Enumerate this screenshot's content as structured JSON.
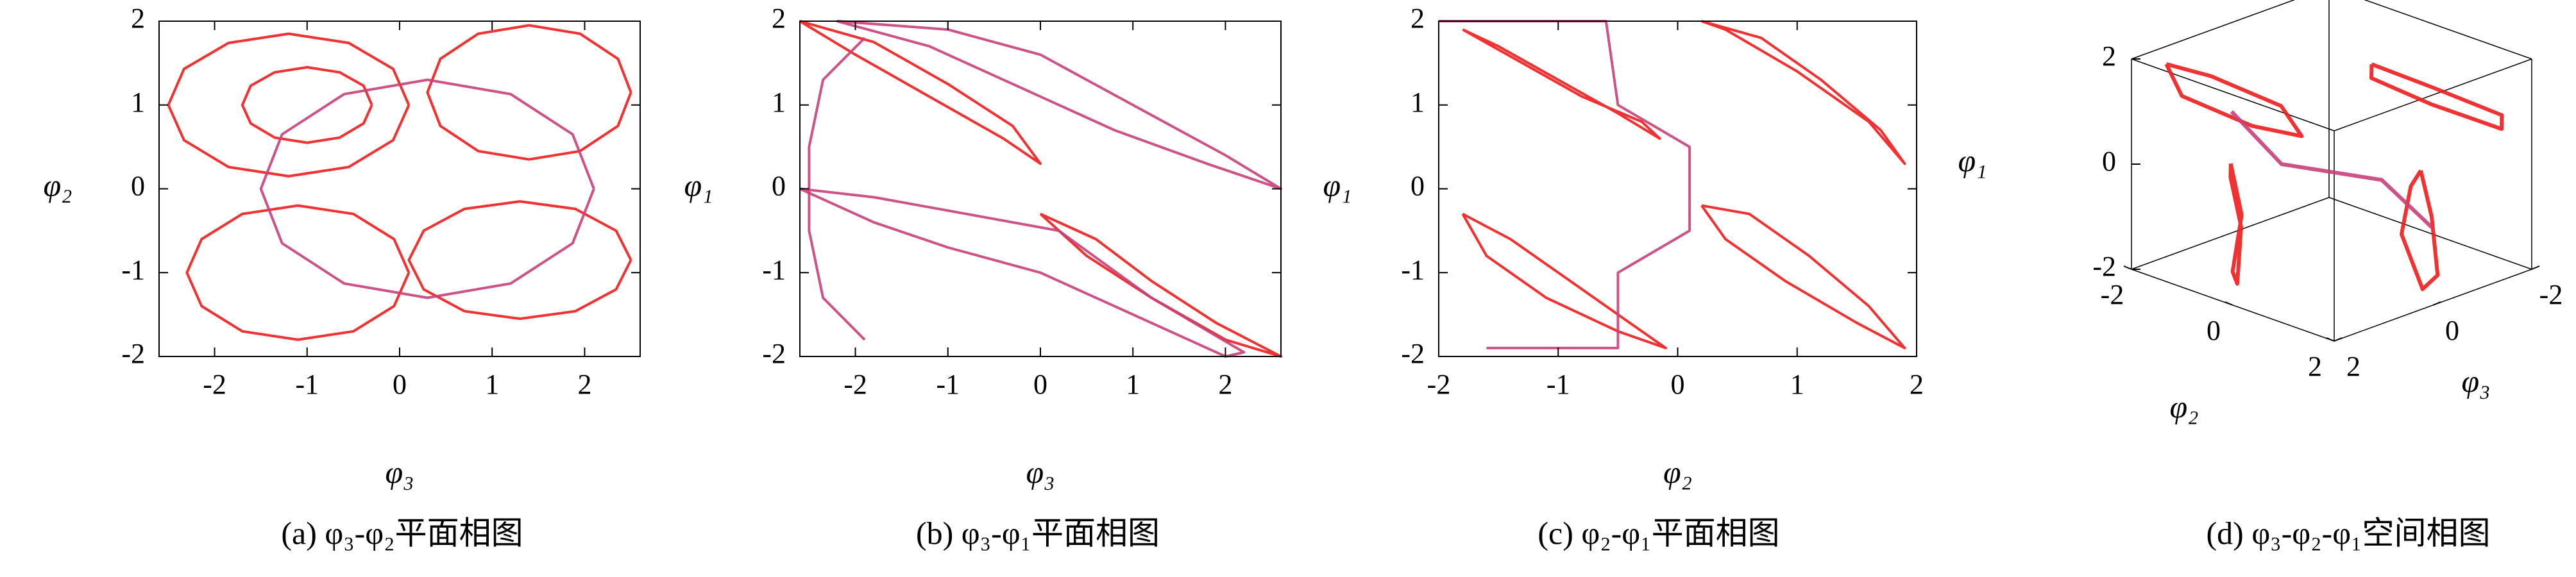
{
  "chart_data": [
    {
      "type": "line",
      "title": "(a) φ₃-φ₂平面相图",
      "xlabel": "φ₃",
      "ylabel": "φ₂",
      "xlim": [
        -2.6,
        2.6
      ],
      "ylim": [
        -2,
        2
      ],
      "xticks": [
        -2,
        -1,
        0,
        1,
        2
      ],
      "yticks": [
        -2,
        -1,
        0,
        1,
        2
      ],
      "series": [
        {
          "color": "#ee1c1c",
          "x": [
            0.1,
            -0.07,
            -0.55,
            -1.2,
            -1.85,
            -2.33,
            -2.5,
            -2.33,
            -1.85,
            -1.2,
            -0.55,
            -0.07,
            0.1
          ],
          "values": [
            1.0,
            1.43,
            1.74,
            1.85,
            1.74,
            1.43,
            1.0,
            0.58,
            0.26,
            0.15,
            0.26,
            0.58,
            1.0
          ]
        },
        {
          "color": "#ee1c1c",
          "x": [
            -0.3,
            -0.39,
            -0.65,
            -1.0,
            -1.35,
            -1.61,
            -1.7,
            -1.61,
            -1.35,
            -1.0,
            -0.65,
            -0.39,
            -0.3
          ],
          "values": [
            1.0,
            1.23,
            1.39,
            1.45,
            1.39,
            1.23,
            1.0,
            0.78,
            0.61,
            0.55,
            0.61,
            0.78,
            1.0
          ]
        },
        {
          "color": "#ee1c1c",
          "x": [
            2.5,
            2.36,
            1.95,
            1.4,
            0.85,
            0.44,
            0.3,
            0.44,
            0.85,
            1.4,
            1.95,
            2.36,
            2.5
          ],
          "values": [
            1.15,
            1.55,
            1.85,
            1.95,
            1.85,
            1.55,
            1.15,
            0.75,
            0.45,
            0.35,
            0.45,
            0.75,
            1.15
          ]
        },
        {
          "color": "#ee1c1c",
          "x": [
            0.1,
            -0.06,
            -0.5,
            -1.1,
            -1.7,
            -2.14,
            -2.3,
            -2.14,
            -1.7,
            -1.1,
            -0.5,
            -0.06,
            0.1
          ],
          "values": [
            -1.0,
            -0.6,
            -0.3,
            -0.2,
            -0.3,
            -0.6,
            -1.0,
            -1.4,
            -1.7,
            -1.8,
            -1.7,
            -1.4,
            -1.0
          ]
        },
        {
          "color": "#ee1c1c",
          "x": [
            2.5,
            2.34,
            1.9,
            1.3,
            0.7,
            0.26,
            0.1,
            0.26,
            0.7,
            1.3,
            1.9,
            2.34,
            2.5
          ],
          "values": [
            -0.85,
            -0.5,
            -0.24,
            -0.15,
            -0.24,
            -0.5,
            -0.85,
            -1.2,
            -1.46,
            -1.55,
            -1.46,
            -1.2,
            -0.85
          ]
        },
        {
          "color": "#c8407a",
          "x": [
            2.1,
            1.87,
            1.2,
            0.3,
            -0.6,
            -1.27,
            -1.5,
            -1.27,
            -0.6,
            0.3,
            1.2,
            1.87,
            2.1
          ],
          "values": [
            0,
            0.65,
            1.13,
            1.3,
            1.13,
            0.65,
            0,
            -0.65,
            -1.13,
            -1.3,
            -1.13,
            -0.65,
            0
          ]
        }
      ]
    },
    {
      "type": "line",
      "title": "(b) φ₃-φ₁平面相图",
      "xlabel": "φ₃",
      "ylabel": "φ₁",
      "xlim": [
        -2.6,
        2.6
      ],
      "ylim": [
        -2,
        2
      ],
      "xticks": [
        -2,
        -1,
        0,
        1,
        2
      ],
      "yticks": [
        -2,
        -1,
        0,
        1,
        2
      ],
      "series": [
        {
          "color": "#ee1c1c",
          "x": [
            -2.6,
            -1.8,
            -1.0,
            -0.3,
            0.0,
            -0.4,
            -1.2,
            -2.0,
            -2.6
          ],
          "values": [
            2.0,
            1.75,
            1.25,
            0.75,
            0.3,
            0.6,
            1.1,
            1.6,
            2.0
          ]
        },
        {
          "color": "#c8407a",
          "x": [
            -2.2,
            -1.0,
            0.0,
            1.0,
            2.0,
            2.6,
            1.8,
            0.8,
            -0.2,
            -1.2,
            -2.2
          ],
          "values": [
            2.0,
            1.9,
            1.6,
            1.0,
            0.4,
            0.0,
            0.3,
            0.7,
            1.2,
            1.7,
            2.0
          ]
        },
        {
          "color": "#ee1c1c",
          "x": [
            0.0,
            0.6,
            1.2,
            1.9,
            2.6,
            2.0,
            1.2,
            0.5,
            0.0
          ],
          "values": [
            -0.3,
            -0.6,
            -1.1,
            -1.6,
            -2.0,
            -1.8,
            -1.3,
            -0.8,
            -0.3
          ]
        },
        {
          "color": "#c8407a",
          "x": [
            -2.6,
            -1.8,
            -1.0,
            0.0,
            1.0,
            2.0,
            2.2,
            1.2,
            0.2,
            -0.8,
            -1.8,
            -2.6
          ],
          "values": [
            0.0,
            -0.4,
            -0.7,
            -1.0,
            -1.5,
            -2.0,
            -1.95,
            -1.3,
            -0.5,
            -0.3,
            -0.1,
            0.0
          ]
        },
        {
          "color": "#c8407a",
          "x": [
            -1.9,
            -2.35,
            -2.5,
            -2.5,
            -2.35,
            -1.9
          ],
          "values": [
            1.8,
            1.3,
            0.5,
            -0.5,
            -1.3,
            -1.8
          ]
        }
      ]
    },
    {
      "type": "line",
      "title": "(c) φ₂-φ₁平面相图",
      "xlabel": "φ₂",
      "ylabel": "φ₁",
      "xlim": [
        -2,
        2
      ],
      "ylim": [
        -2,
        2
      ],
      "xticks": [
        -2,
        -1,
        0,
        1,
        2
      ],
      "yticks": [
        -2,
        -1,
        0,
        1,
        2
      ],
      "series": [
        {
          "color": "#ee1c1c",
          "x": [
            -1.8,
            -1.3,
            -0.8,
            -0.3,
            -0.15,
            -0.5,
            -1.0,
            -1.5,
            -1.8
          ],
          "values": [
            1.9,
            1.5,
            1.1,
            0.8,
            0.6,
            0.9,
            1.3,
            1.7,
            1.9
          ]
        },
        {
          "color": "#ee1c1c",
          "x": [
            0.2,
            0.7,
            1.2,
            1.7,
            1.9,
            1.6,
            1.0,
            0.4,
            0.2
          ],
          "values": [
            2.0,
            1.8,
            1.3,
            0.7,
            0.3,
            0.8,
            1.4,
            1.9,
            2.0
          ]
        },
        {
          "color": "#ee1c1c",
          "x": [
            -1.8,
            -1.4,
            -0.9,
            -0.4,
            -0.1,
            -0.5,
            -1.1,
            -1.6,
            -1.8
          ],
          "values": [
            -0.3,
            -0.6,
            -1.1,
            -1.6,
            -1.9,
            -1.7,
            -1.3,
            -0.8,
            -0.3
          ]
        },
        {
          "color": "#ee1c1c",
          "x": [
            0.2,
            0.6,
            1.1,
            1.6,
            1.9,
            1.5,
            0.9,
            0.4,
            0.2
          ],
          "values": [
            -0.2,
            -0.3,
            -0.8,
            -1.4,
            -1.9,
            -1.6,
            -1.1,
            -0.6,
            -0.2
          ]
        },
        {
          "color": "#c8407a",
          "x": [
            -2.0,
            -0.6,
            -0.5,
            0.1,
            0.1,
            -0.5,
            -0.5,
            -1.6
          ],
          "values": [
            2.0,
            2.0,
            1.0,
            0.5,
            -0.5,
            -1.0,
            -1.9,
            -1.9
          ]
        }
      ]
    },
    {
      "type": "line3d",
      "title": "(d) φ₃-φ₂-φ₁空间相图",
      "xlabel": "φ₂",
      "ylabel": "φ₃",
      "zlabel": "φ₁",
      "xlim": [
        -2,
        2
      ],
      "ylim": [
        -2,
        2
      ],
      "zlim": [
        -2,
        2
      ],
      "xticks": [
        -2,
        0,
        2
      ],
      "yticks": [
        -2,
        0,
        2
      ],
      "zticks": [
        -2,
        0,
        2
      ],
      "series": [
        {
          "color": "#ee1c1c",
          "x": [
            -1.8,
            -1.2,
            -0.4,
            -0.2,
            -0.8,
            -1.6,
            -1.8
          ],
          "y": [
            1.5,
            1.8,
            1.2,
            0.4,
            0.2,
            0.8,
            1.5
          ],
          "z": [
            1.8,
            1.5,
            1.0,
            0.6,
            0.9,
            1.4,
            1.8
          ]
        },
        {
          "color": "#ee1c1c",
          "x": [
            0.4,
            1.2,
            1.8,
            1.6,
            0.8,
            0.2,
            0.4
          ],
          "y": [
            -0.4,
            -0.8,
            -1.6,
            -1.8,
            -1.2,
            -0.6,
            -0.4
          ],
          "z": [
            1.9,
            1.6,
            1.0,
            0.6,
            1.0,
            1.5,
            1.9
          ]
        },
        {
          "color": "#ee1c1c",
          "x": [
            -1.6,
            -0.8,
            -0.2,
            -0.4,
            -1.2,
            -1.8,
            -1.6
          ],
          "y": [
            0.4,
            1.0,
            1.8,
            1.5,
            0.6,
            0.2,
            0.4
          ],
          "z": [
            -0.4,
            -0.9,
            -1.5,
            -1.9,
            -1.4,
            -0.8,
            -0.4
          ]
        },
        {
          "color": "#ee1c1c",
          "x": [
            0.2,
            1.0,
            1.8,
            1.6,
            0.6,
            0.1,
            0.2
          ],
          "y": [
            -1.6,
            -1.0,
            -0.3,
            -0.2,
            -0.8,
            -1.5,
            -1.6
          ],
          "z": [
            -0.6,
            -1.0,
            -1.6,
            -1.9,
            -1.4,
            -0.9,
            -0.6
          ]
        },
        {
          "color": "#c8407a",
          "x": [
            -1.0,
            -0.5,
            0.5,
            1.0
          ],
          "y": [
            1.0,
            0.5,
            -0.5,
            -1.0
          ],
          "z": [
            1.0,
            0.0,
            -0.3,
            -1.2
          ]
        }
      ]
    }
  ]
}
